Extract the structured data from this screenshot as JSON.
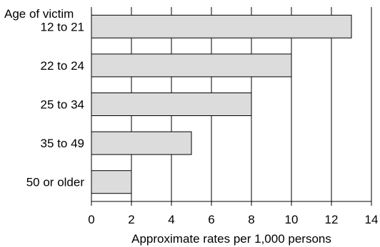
{
  "chart_data": {
    "type": "bar",
    "orientation": "horizontal",
    "title": "",
    "category_axis_label": "Age of victim",
    "xlabel": "Approximate rates per 1,000 persons",
    "categories": [
      "12 to 21",
      "22 to 24",
      "25 to 34",
      "35 to 49",
      "50 or older"
    ],
    "values": [
      13,
      10,
      8,
      5,
      2
    ],
    "xlim": [
      0,
      14
    ],
    "xticks": [
      0,
      2,
      4,
      6,
      8,
      10,
      12,
      14
    ],
    "grid": "vertical",
    "legend": "none",
    "colors": {
      "bar_fill": "#dcdcdc",
      "bar_stroke": "#000000",
      "grid": "#000000",
      "background": "#ffffff"
    }
  }
}
